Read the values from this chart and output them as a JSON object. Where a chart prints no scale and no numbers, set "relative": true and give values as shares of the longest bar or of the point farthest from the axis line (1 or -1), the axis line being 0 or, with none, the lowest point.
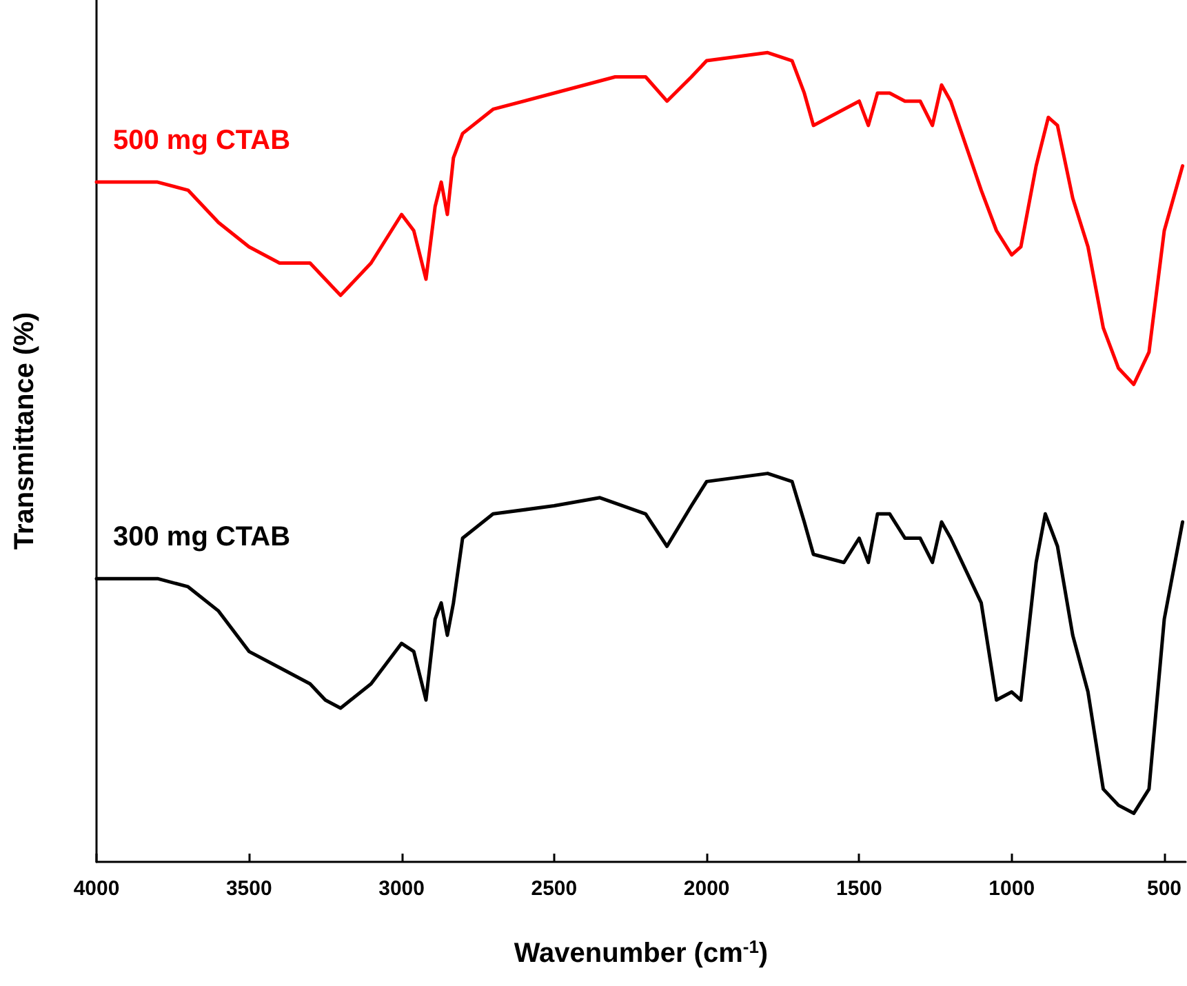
{
  "chart_data": {
    "type": "line",
    "relative": true,
    "xlabel": "Wavenumber (cm$^{-1}$)",
    "ylabel": "Transmittance (%)",
    "xlim": [
      4000,
      430
    ],
    "xticks": [
      4000,
      3500,
      3000,
      2500,
      2000,
      1500,
      1000,
      500
    ],
    "grid": false,
    "legend": false,
    "marker": "none",
    "line_style": "solid",
    "series": [
      {
        "name": "500 mg CTAB",
        "color": "#ff0000",
        "x": [
          4000,
          3800,
          3700,
          3600,
          3500,
          3400,
          3300,
          3250,
          3200,
          3100,
          3000,
          2960,
          2920,
          2890,
          2870,
          2850,
          2830,
          2800,
          2700,
          2500,
          2300,
          2200,
          2130,
          2050,
          2000,
          1800,
          1720,
          1680,
          1650,
          1600,
          1550,
          1500,
          1470,
          1440,
          1400,
          1350,
          1300,
          1260,
          1230,
          1200,
          1100,
          1050,
          1000,
          970,
          920,
          880,
          850,
          800,
          750,
          700,
          650,
          600,
          550,
          500,
          440
        ],
        "values": [
          0.84,
          0.84,
          0.83,
          0.79,
          0.76,
          0.74,
          0.74,
          0.72,
          0.7,
          0.74,
          0.8,
          0.78,
          0.72,
          0.81,
          0.84,
          0.8,
          0.87,
          0.9,
          0.93,
          0.95,
          0.97,
          0.97,
          0.94,
          0.97,
          0.99,
          1.0,
          0.99,
          0.95,
          0.91,
          0.92,
          0.93,
          0.94,
          0.91,
          0.95,
          0.95,
          0.94,
          0.94,
          0.91,
          0.96,
          0.94,
          0.83,
          0.78,
          0.75,
          0.76,
          0.86,
          0.92,
          0.91,
          0.82,
          0.76,
          0.66,
          0.61,
          0.59,
          0.63,
          0.78,
          0.86
        ]
      },
      {
        "name": "300 mg CTAB",
        "color": "#000000",
        "x": [
          4000,
          3800,
          3700,
          3600,
          3500,
          3400,
          3300,
          3250,
          3200,
          3100,
          3000,
          2960,
          2920,
          2890,
          2870,
          2850,
          2830,
          2800,
          2700,
          2500,
          2350,
          2200,
          2130,
          2050,
          2000,
          1800,
          1720,
          1680,
          1650,
          1550,
          1500,
          1470,
          1440,
          1400,
          1350,
          1300,
          1260,
          1230,
          1200,
          1100,
          1050,
          1000,
          970,
          920,
          890,
          850,
          800,
          750,
          700,
          650,
          600,
          550,
          500,
          440
        ],
        "values": [
          0.35,
          0.35,
          0.34,
          0.31,
          0.26,
          0.24,
          0.22,
          0.2,
          0.19,
          0.22,
          0.27,
          0.26,
          0.2,
          0.3,
          0.32,
          0.28,
          0.32,
          0.4,
          0.43,
          0.44,
          0.45,
          0.43,
          0.39,
          0.44,
          0.47,
          0.48,
          0.47,
          0.42,
          0.38,
          0.37,
          0.4,
          0.37,
          0.43,
          0.43,
          0.4,
          0.4,
          0.37,
          0.42,
          0.4,
          0.32,
          0.2,
          0.21,
          0.2,
          0.37,
          0.43,
          0.39,
          0.28,
          0.21,
          0.09,
          0.07,
          0.06,
          0.09,
          0.3,
          0.42
        ]
      }
    ]
  }
}
